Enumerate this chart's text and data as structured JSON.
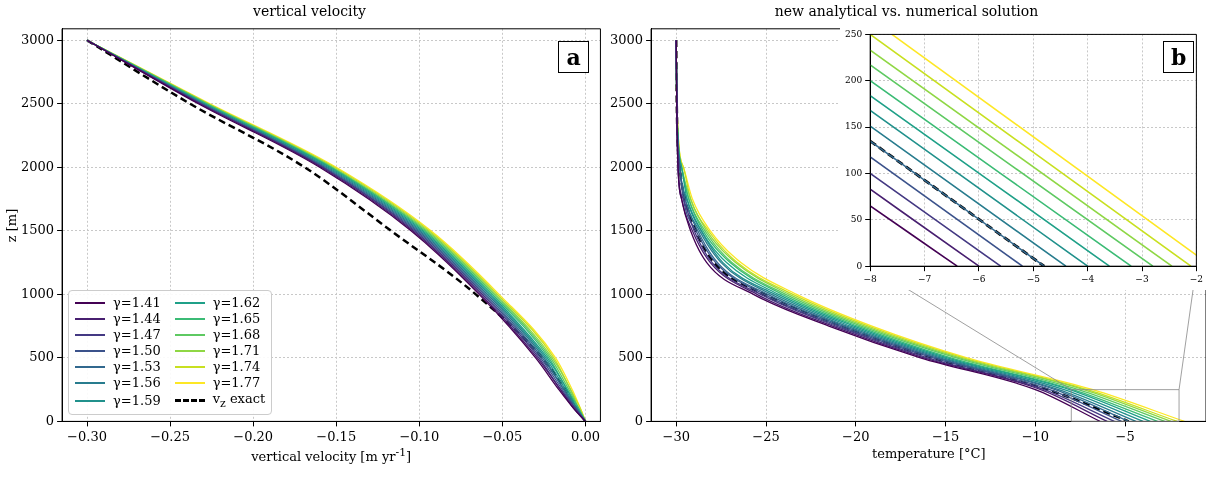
{
  "chart_data": [
    {
      "type": "line",
      "title": "vertical velocity",
      "xlabel": "vertical velocity [m yr$^{-1}$]",
      "ylabel": "z [m]",
      "annotations": [
        "a"
      ],
      "legend": "bottom left",
      "grid": true,
      "xlim": [
        -0.315,
        0.009
      ],
      "ylim": [
        0,
        3090
      ],
      "xticks": [
        {
          "value": -0.3,
          "label": "−0.30"
        },
        {
          "value": -0.25,
          "label": "−0.25"
        },
        {
          "value": -0.2,
          "label": "−0.20"
        },
        {
          "value": -0.15,
          "label": "−0.15"
        },
        {
          "value": -0.1,
          "label": "−0.10"
        },
        {
          "value": -0.05,
          "label": "−0.05"
        },
        {
          "value": 0,
          "label": "0.00"
        }
      ],
      "yticks": [
        0,
        500,
        1000,
        1500,
        2000,
        2500,
        3000
      ],
      "series": [
        {
          "name": "γ=1.41",
          "color": "#440154",
          "x": [
            -0.3,
            -0.233,
            -0.16,
            -0.105,
            -0.064,
            -0.03,
            -0.016,
            -0.007,
            0
          ],
          "values": [
            3000,
            2500,
            2000,
            1500,
            1000,
            500,
            250,
            100,
            0
          ]
        },
        {
          "name": "γ=1.44",
          "color": "#481f70",
          "x": [
            -0.3,
            -0.232,
            -0.159,
            -0.104,
            -0.063,
            -0.029,
            -0.015,
            -0.007,
            0
          ],
          "values": [
            3000,
            2500,
            2000,
            1500,
            1000,
            500,
            250,
            100,
            0
          ]
        },
        {
          "name": "γ=1.47",
          "color": "#443983",
          "x": [
            -0.3,
            -0.232,
            -0.158,
            -0.103,
            -0.062,
            -0.028,
            -0.015,
            -0.006,
            0
          ],
          "values": [
            3000,
            2500,
            2000,
            1500,
            1000,
            500,
            250,
            100,
            0
          ]
        },
        {
          "name": "γ=1.50",
          "color": "#3b528b",
          "x": [
            -0.3,
            -0.231,
            -0.158,
            -0.102,
            -0.061,
            -0.027,
            -0.014,
            -0.006,
            0
          ],
          "values": [
            3000,
            2500,
            2000,
            1500,
            1000,
            500,
            250,
            100,
            0
          ]
        },
        {
          "name": "γ=1.53",
          "color": "#31688e",
          "x": [
            -0.3,
            -0.231,
            -0.157,
            -0.101,
            -0.06,
            -0.026,
            -0.013,
            -0.006,
            0
          ],
          "values": [
            3000,
            2500,
            2000,
            1500,
            1000,
            500,
            250,
            100,
            0
          ]
        },
        {
          "name": "γ=1.56",
          "color": "#287c8e",
          "x": [
            -0.3,
            -0.23,
            -0.156,
            -0.1,
            -0.059,
            -0.025,
            -0.013,
            -0.005,
            0
          ],
          "values": [
            3000,
            2500,
            2000,
            1500,
            1000,
            500,
            250,
            100,
            0
          ]
        },
        {
          "name": "γ=1.59",
          "color": "#21918c",
          "x": [
            -0.3,
            -0.23,
            -0.155,
            -0.099,
            -0.058,
            -0.024,
            -0.012,
            -0.005,
            0
          ],
          "values": [
            3000,
            2500,
            2000,
            1500,
            1000,
            500,
            250,
            100,
            0
          ]
        },
        {
          "name": "γ=1.62",
          "color": "#1fa088",
          "x": [
            -0.3,
            -0.229,
            -0.154,
            -0.098,
            -0.057,
            -0.023,
            -0.011,
            -0.005,
            0
          ],
          "values": [
            3000,
            2500,
            2000,
            1500,
            1000,
            500,
            250,
            100,
            0
          ]
        },
        {
          "name": "γ=1.65",
          "color": "#3bbb75",
          "x": [
            -0.3,
            -0.228,
            -0.153,
            -0.097,
            -0.056,
            -0.022,
            -0.011,
            -0.004,
            0
          ],
          "values": [
            3000,
            2500,
            2000,
            1500,
            1000,
            500,
            250,
            100,
            0
          ]
        },
        {
          "name": "γ=1.68",
          "color": "#5ec962",
          "x": [
            -0.3,
            -0.228,
            -0.153,
            -0.096,
            -0.055,
            -0.021,
            -0.01,
            -0.004,
            0
          ],
          "values": [
            3000,
            2500,
            2000,
            1500,
            1000,
            500,
            250,
            100,
            0
          ]
        },
        {
          "name": "γ=1.71",
          "color": "#8fd744",
          "x": [
            -0.3,
            -0.227,
            -0.152,
            -0.095,
            -0.054,
            -0.02,
            -0.009,
            -0.004,
            0
          ],
          "values": [
            3000,
            2500,
            2000,
            1500,
            1000,
            500,
            250,
            100,
            0
          ]
        },
        {
          "name": "γ=1.74",
          "color": "#c8e020",
          "x": [
            -0.3,
            -0.227,
            -0.151,
            -0.094,
            -0.053,
            -0.019,
            -0.009,
            -0.003,
            0
          ],
          "values": [
            3000,
            2500,
            2000,
            1500,
            1000,
            500,
            250,
            100,
            0
          ]
        },
        {
          "name": "γ=1.77",
          "color": "#fde725",
          "x": [
            -0.3,
            -0.226,
            -0.15,
            -0.093,
            -0.052,
            -0.018,
            -0.008,
            -0.003,
            0
          ],
          "values": [
            3000,
            2500,
            2000,
            1500,
            1000,
            500,
            250,
            100,
            0
          ]
        },
        {
          "name": "v$_{z}$ exact",
          "color": "#000000",
          "line_style": "dashed",
          "x": [
            -0.3,
            -0.238,
            -0.169,
            -0.117,
            -0.066,
            -0.026,
            -0.012,
            -0.005,
            0
          ],
          "values": [
            3000,
            2500,
            2000,
            1500,
            1000,
            500,
            250,
            100,
            0
          ]
        }
      ]
    },
    {
      "type": "line",
      "title": "new analytical vs. numerical solution",
      "xlabel": "temperature [°C]",
      "annotations": [
        "b"
      ],
      "grid": true,
      "xlim": [
        -31.4,
        -0.5
      ],
      "ylim": [
        0,
        3090
      ],
      "xticks": [
        {
          "value": -30,
          "label": "−30"
        },
        {
          "value": -25,
          "label": "−25"
        },
        {
          "value": -20,
          "label": "−20"
        },
        {
          "value": -15,
          "label": "−15"
        },
        {
          "value": -10,
          "label": "−10"
        },
        {
          "value": -5,
          "label": "−5"
        }
      ],
      "yticks": [
        0,
        500,
        1000,
        1500,
        2000,
        2500,
        3000
      ],
      "series": [
        {
          "color": "#440154",
          "x": [
            -30,
            -29.97,
            -29.9,
            -29.7,
            -29.2,
            -28.3,
            -25.7,
            -21.5,
            -16.4,
            -10.0,
            -6.4
          ],
          "values": [
            3000,
            2500,
            2000,
            1750,
            1500,
            1250,
            1000,
            750,
            500,
            250,
            0
          ]
        },
        {
          "color": "#481f70",
          "x": [
            -30,
            -29.97,
            -29.9,
            -29.7,
            -29.1,
            -28.1,
            -25.5,
            -21.3,
            -16.2,
            -9.7,
            -6.0
          ],
          "values": [
            3000,
            2500,
            2000,
            1750,
            1500,
            1250,
            1000,
            750,
            500,
            250,
            0
          ]
        },
        {
          "color": "#443983",
          "x": [
            -30,
            -29.97,
            -29.9,
            -29.6,
            -29.0,
            -28.0,
            -25.3,
            -21.1,
            -16.0,
            -9.5,
            -5.6
          ],
          "values": [
            3000,
            2500,
            2000,
            1750,
            1500,
            1250,
            1000,
            750,
            500,
            250,
            0
          ]
        },
        {
          "color": "#3b528b",
          "x": [
            -30,
            -29.97,
            -29.8,
            -29.6,
            -28.9,
            -27.8,
            -25.1,
            -20.9,
            -15.7,
            -9.2,
            -5.2
          ],
          "values": [
            3000,
            2500,
            2000,
            1750,
            1500,
            1250,
            1000,
            750,
            500,
            250,
            0
          ]
        },
        {
          "color": "#31688e",
          "x": [
            -30,
            -29.97,
            -29.8,
            -29.5,
            -28.8,
            -27.7,
            -24.9,
            -20.7,
            -15.5,
            -8.9,
            -4.8
          ],
          "values": [
            3000,
            2500,
            2000,
            1750,
            1500,
            1250,
            1000,
            750,
            500,
            250,
            0
          ]
        },
        {
          "color": "#287c8e",
          "x": [
            -30,
            -29.97,
            -29.8,
            -29.5,
            -28.7,
            -27.5,
            -24.7,
            -20.5,
            -15.3,
            -8.7,
            -4.4
          ],
          "values": [
            3000,
            2500,
            2000,
            1750,
            1500,
            1250,
            1000,
            750,
            500,
            250,
            0
          ]
        },
        {
          "color": "#21918c",
          "x": [
            -30,
            -29.97,
            -29.8,
            -29.4,
            -28.6,
            -27.4,
            -24.5,
            -20.3,
            -15.1,
            -8.4,
            -4.0
          ],
          "values": [
            3000,
            2500,
            2000,
            1750,
            1500,
            1250,
            1000,
            750,
            500,
            250,
            0
          ]
        },
        {
          "color": "#1fa088",
          "x": [
            -30,
            -29.97,
            -29.7,
            -29.4,
            -28.6,
            -27.2,
            -24.3,
            -20.1,
            -14.9,
            -8.1,
            -3.6
          ],
          "values": [
            3000,
            2500,
            2000,
            1750,
            1500,
            1250,
            1000,
            750,
            500,
            250,
            0
          ]
        },
        {
          "color": "#3bbb75",
          "x": [
            -30,
            -29.97,
            -29.7,
            -29.3,
            -28.5,
            -27.0,
            -24.1,
            -19.9,
            -14.7,
            -7.9,
            -3.2
          ],
          "values": [
            3000,
            2500,
            2000,
            1750,
            1500,
            1250,
            1000,
            750,
            500,
            250,
            0
          ]
        },
        {
          "color": "#5ec962",
          "x": [
            -30,
            -29.97,
            -29.7,
            -29.3,
            -28.4,
            -26.9,
            -23.9,
            -19.7,
            -14.4,
            -7.6,
            -2.8
          ],
          "values": [
            3000,
            2500,
            2000,
            1750,
            1500,
            1250,
            1000,
            750,
            500,
            250,
            0
          ]
        },
        {
          "color": "#8fd744",
          "x": [
            -30,
            -29.97,
            -29.7,
            -29.2,
            -28.3,
            -26.7,
            -23.7,
            -19.5,
            -14.2,
            -7.3,
            -2.45
          ],
          "values": [
            3000,
            2500,
            2000,
            1750,
            1500,
            1250,
            1000,
            750,
            500,
            250,
            0
          ]
        },
        {
          "color": "#c8e020",
          "x": [
            -30,
            -29.97,
            -29.6,
            -29.2,
            -28.2,
            -26.6,
            -23.5,
            -19.3,
            -14.0,
            -7.1,
            -2.1
          ],
          "values": [
            3000,
            2500,
            2000,
            1750,
            1500,
            1250,
            1000,
            750,
            500,
            250,
            0
          ]
        },
        {
          "color": "#fde725",
          "x": [
            -30,
            -29.97,
            -29.6,
            -29.1,
            -28.1,
            -26.4,
            -23.3,
            -19.1,
            -13.8,
            -6.8,
            -1.7
          ],
          "values": [
            3000,
            2500,
            2000,
            1750,
            1500,
            1250,
            1000,
            750,
            500,
            250,
            0
          ]
        },
        {
          "color": "#000000",
          "line_style": "dashed",
          "x": [
            -30,
            -29.97,
            -29.8,
            -29.5,
            -28.9,
            -27.9,
            -25.1,
            -20.8,
            -15.7,
            -9.3,
            -4.8
          ],
          "values": [
            3000,
            2500,
            2000,
            1750,
            1500,
            1250,
            1000,
            750,
            500,
            250,
            0
          ]
        }
      ]
    },
    {
      "type": "line",
      "grid": true,
      "xlim": [
        -8,
        -2
      ],
      "ylim": [
        0,
        250
      ],
      "xticks": [
        {
          "value": -8,
          "label": "−8"
        },
        {
          "value": -7,
          "label": "−7"
        },
        {
          "value": -6,
          "label": "−6"
        },
        {
          "value": -5,
          "label": "−5"
        },
        {
          "value": -4,
          "label": "−4"
        },
        {
          "value": -3,
          "label": "−3"
        },
        {
          "value": -2,
          "label": "−2"
        }
      ],
      "yticks": [
        0,
        50,
        100,
        150,
        200,
        250
      ],
      "series": [
        {
          "color": "#440154",
          "x": [
            -8,
            -6.4
          ],
          "values": [
            65,
            0
          ]
        },
        {
          "color": "#481f70",
          "x": [
            -8,
            -6.0
          ],
          "values": [
            83,
            0
          ]
        },
        {
          "color": "#443983",
          "x": [
            -8,
            -5.6
          ],
          "values": [
            100,
            0
          ]
        },
        {
          "color": "#3b528b",
          "x": [
            -8,
            -5.2
          ],
          "values": [
            118,
            0
          ]
        },
        {
          "color": "#31688e",
          "x": [
            -8,
            -4.8
          ],
          "values": [
            135,
            0
          ]
        },
        {
          "color": "#287c8e",
          "x": [
            -8,
            -4.4
          ],
          "values": [
            151,
            0
          ]
        },
        {
          "color": "#21918c",
          "x": [
            -8,
            -4.0
          ],
          "values": [
            168,
            0
          ]
        },
        {
          "color": "#1fa088",
          "x": [
            -8,
            -3.6
          ],
          "values": [
            184,
            0
          ]
        },
        {
          "color": "#3bbb75",
          "x": [
            -8,
            -3.2
          ],
          "values": [
            200,
            0
          ]
        },
        {
          "color": "#5ec962",
          "x": [
            -8,
            -2.8
          ],
          "values": [
            217,
            0
          ]
        },
        {
          "color": "#8fd744",
          "x": [
            -8,
            -2.45
          ],
          "values": [
            233,
            0
          ]
        },
        {
          "color": "#c8e020",
          "x": [
            -8,
            -2.1
          ],
          "values": [
            250,
            0
          ]
        },
        {
          "color": "#fde725",
          "x": [
            -7.6,
            -2.0
          ],
          "values": [
            250,
            12
          ]
        },
        {
          "color": "#000000",
          "line_style": "dashed",
          "x": [
            -8,
            -4.8
          ],
          "values": [
            135,
            0
          ]
        }
      ]
    }
  ]
}
